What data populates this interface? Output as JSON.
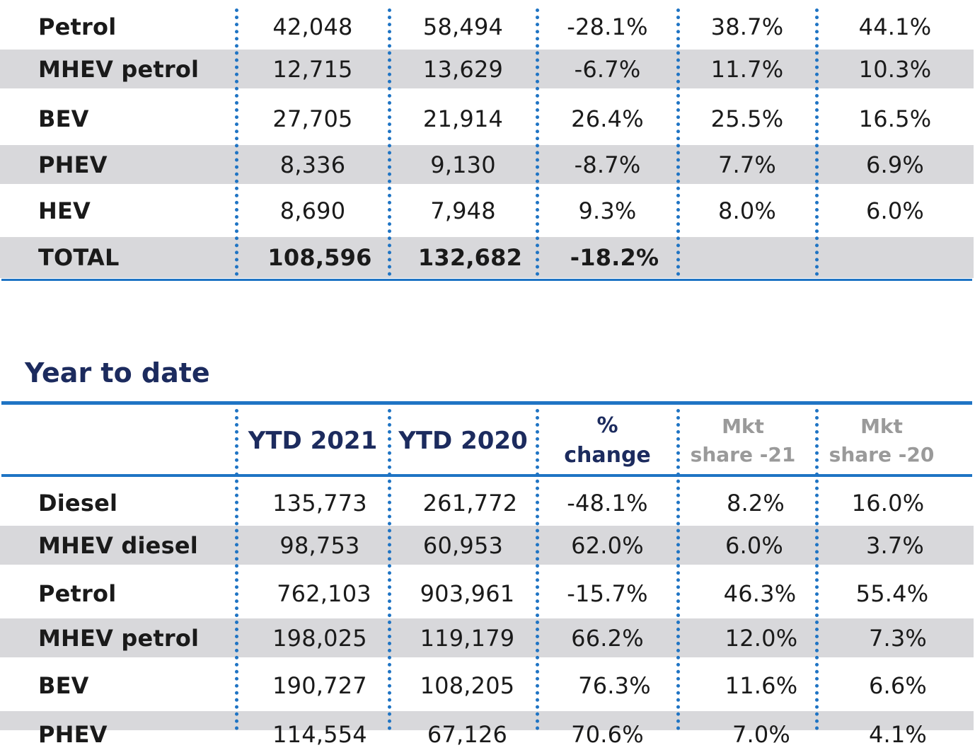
{
  "monthly": {
    "rows": [
      {
        "label": "Petrol",
        "c1": "42,048",
        "c2": "58,494",
        "c3": "-28.1%",
        "c4": "38.7%",
        "c5": "44.1%"
      },
      {
        "label": "MHEV petrol",
        "c1": "12,715",
        "c2": "13,629",
        "c3": "-6.7%",
        "c4": "11.7%",
        "c5": "10.3%"
      },
      {
        "label": "BEV",
        "c1": "27,705",
        "c2": "21,914",
        "c3": "26.4%",
        "c4": "25.5%",
        "c5": "16.5%"
      },
      {
        "label": "PHEV",
        "c1": "8,336",
        "c2": "9,130",
        "c3": "-8.7%",
        "c4": "7.7%",
        "c5": "6.9%"
      },
      {
        "label": "HEV",
        "c1": "8,690",
        "c2": "7,948",
        "c3": "9.3%",
        "c4": "8.0%",
        "c5": "6.0%"
      },
      {
        "label": "TOTAL",
        "c1": "108,596",
        "c2": "132,682",
        "c3": "-18.2%",
        "c4": "",
        "c5": ""
      }
    ]
  },
  "ytd": {
    "title": "Year to date",
    "headers": {
      "col1": "YTD 2021",
      "col2": "YTD 2020",
      "col3_line1": "%",
      "col3_line2": "change",
      "col4_line1": "Mkt",
      "col4_line2": "share -21",
      "col5_line1": "Mkt",
      "col5_line2": "share -20"
    },
    "rows": [
      {
        "label": "Diesel",
        "c1": "135,773",
        "c2": "261,772",
        "c3": "-48.1%",
        "c4": "8.2%",
        "c5": "16.0%"
      },
      {
        "label": "MHEV diesel",
        "c1": "98,753",
        "c2": "60,953",
        "c3": "62.0%",
        "c4": "6.0%",
        "c5": "3.7%"
      },
      {
        "label": "Petrol",
        "c1": "762,103",
        "c2": "903,961",
        "c3": "-15.7%",
        "c4": "46.3%",
        "c5": "55.4%"
      },
      {
        "label": "MHEV petrol",
        "c1": "198,025",
        "c2": "119,179",
        "c3": "66.2%",
        "c4": "12.0%",
        "c5": "7.3%"
      },
      {
        "label": "BEV",
        "c1": "190,727",
        "c2": "108,205",
        "c3": "76.3%",
        "c4": "11.6%",
        "c5": "6.6%"
      },
      {
        "label": "PHEV",
        "c1": "114,554",
        "c2": "67,126",
        "c3": "70.6%",
        "c4": "7.0%",
        "c5": "4.1%"
      }
    ]
  }
}
